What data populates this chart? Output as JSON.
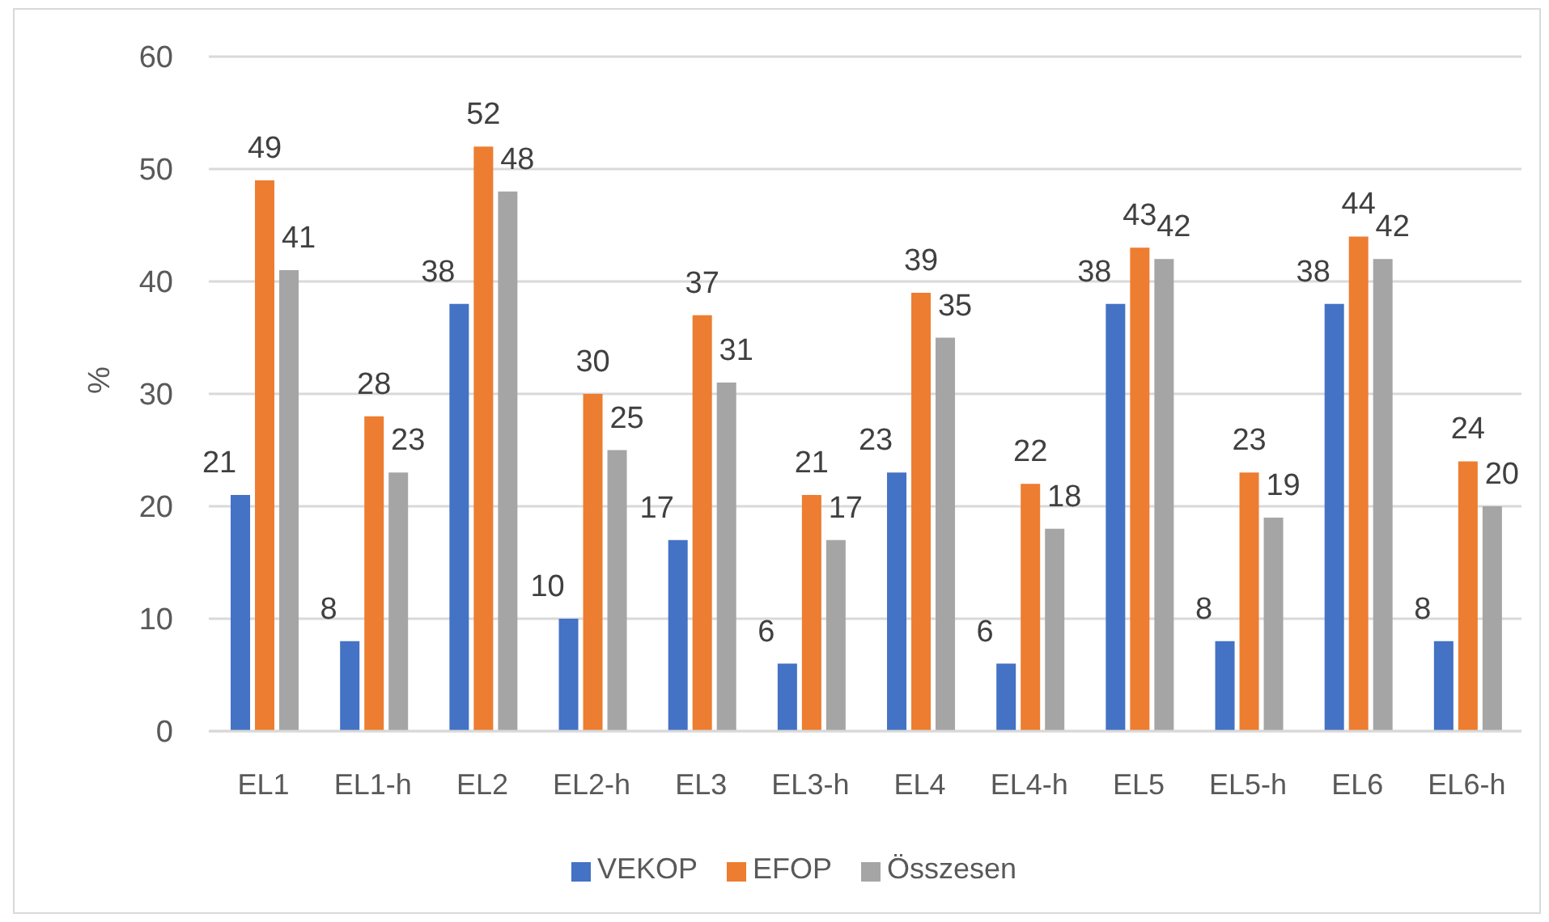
{
  "chart_data": {
    "type": "bar",
    "ylabel": "%",
    "categories": [
      "EL1",
      "EL1-h",
      "EL2",
      "EL2-h",
      "EL3",
      "EL3-h",
      "EL4",
      "EL4-h",
      "EL5",
      "EL5-h",
      "EL6",
      "EL6-h"
    ],
    "series": [
      {
        "name": "VEKOP",
        "color": "#4472c4",
        "values": [
          21,
          8,
          38,
          10,
          17,
          6,
          23,
          6,
          38,
          8,
          38,
          8
        ]
      },
      {
        "name": "EFOP",
        "color": "#ed7d31",
        "values": [
          49,
          28,
          52,
          30,
          37,
          21,
          39,
          22,
          43,
          23,
          44,
          24
        ]
      },
      {
        "name": "Összesen",
        "color": "#a5a5a5",
        "values": [
          41,
          23,
          48,
          25,
          31,
          17,
          35,
          18,
          42,
          19,
          42,
          20
        ]
      }
    ],
    "ylim": [
      0,
      60
    ],
    "yticks": [
      0,
      10,
      20,
      30,
      40,
      50,
      60
    ],
    "grid": "y",
    "legend": "bottom",
    "data_labels": true
  }
}
